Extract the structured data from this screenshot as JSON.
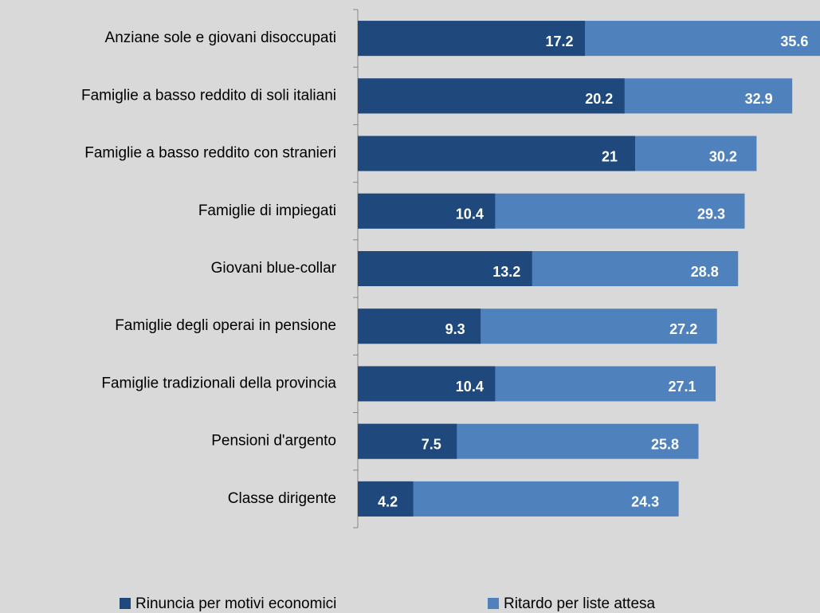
{
  "chart_data": {
    "type": "bar",
    "orientation": "horizontal",
    "mode": "overlap",
    "categories": [
      "Anziane sole e giovani disoccupati",
      "Famiglie a basso reddito di soli italiani",
      "Famiglie a basso reddito con stranieri",
      "Famiglie di impiegati",
      "Giovani blue-collar",
      "Famiglie degli operai in pensione",
      "Famiglie tradizionali della provincia",
      "Pensioni d'argento",
      "Classe dirigente"
    ],
    "series": [
      {
        "name": "Ritardo per liste attesa",
        "color": "#4f81bd",
        "values": [
          35.6,
          32.9,
          30.2,
          29.3,
          28.8,
          27.2,
          27.1,
          25.8,
          24.3
        ]
      },
      {
        "name": "Rinuncia per motivi economici",
        "color": "#1f497d",
        "values": [
          17.2,
          20.2,
          21,
          10.4,
          13.2,
          9.3,
          10.4,
          7.5,
          4.2
        ]
      }
    ],
    "legend": "bottom"
  }
}
